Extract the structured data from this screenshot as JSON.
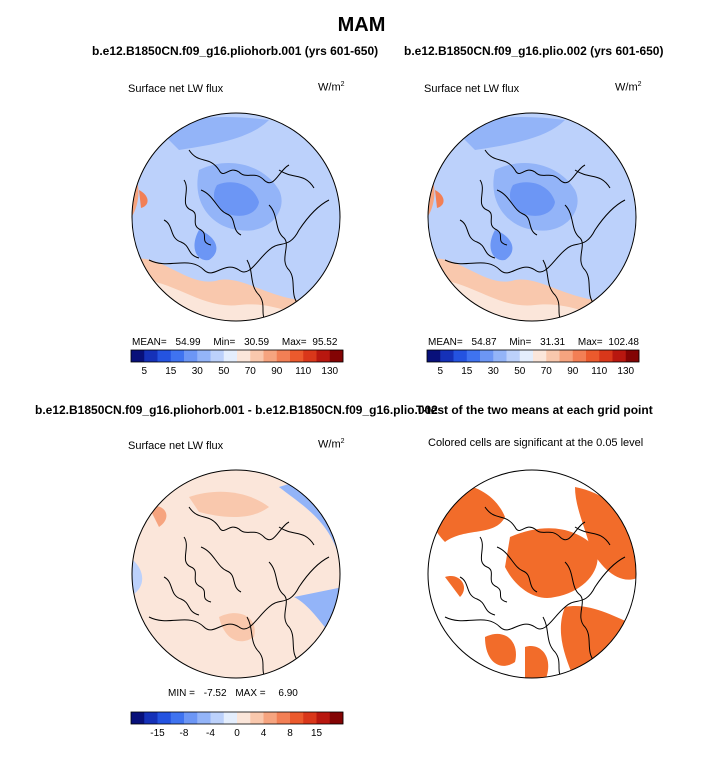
{
  "figure_title": "MAM",
  "colors": {
    "blue_scale": [
      "#08107a",
      "#1531b8",
      "#2453e0",
      "#3f73f0",
      "#6c96f5",
      "#93b4f8",
      "#bcd1fb",
      "#e4eefd"
    ],
    "red_scale": [
      "#fbe6da",
      "#f9c8ad",
      "#f6a47f",
      "#f27f55",
      "#eb5a2d",
      "#d9371a",
      "#b8170f",
      "#830404"
    ],
    "significant": "#f26c2a",
    "land_line": "#000000"
  },
  "panels": [
    {
      "title": "b.e12.B1850CN.f09_g16.pliohorb.001 (yrs 601-650)",
      "left_label": "Surface net LW flux",
      "units": "W/m",
      "units_sup": "2",
      "stats": {
        "mean_label": "MEAN=",
        "mean": "54.99",
        "min_label": "Min=",
        "min": "30.59",
        "max_label": "Max=",
        "max": "95.52"
      },
      "colorbar_ticks": [
        "5",
        "15",
        "30",
        "50",
        "70",
        "90",
        "110",
        "130"
      ]
    },
    {
      "title": "b.e12.B1850CN.f09_g16.plio.002 (yrs 601-650)",
      "left_label": "Surface net LW flux",
      "units": "W/m",
      "units_sup": "2",
      "stats": {
        "mean_label": "MEAN=",
        "mean": "54.87",
        "min_label": "Min=",
        "min": "31.31",
        "max_label": "Max=",
        "max": "102.48"
      },
      "colorbar_ticks": [
        "5",
        "15",
        "30",
        "50",
        "70",
        "90",
        "110",
        "130"
      ]
    },
    {
      "title": "b.e12.B1850CN.f09_g16.pliohorb.001 - b.e12.B1850CN.f09_g16.plio.002",
      "left_label": "Surface net LW flux",
      "units": "W/m",
      "units_sup": "2",
      "stats": {
        "min_label": "MIN =",
        "min": "-7.52",
        "max_label": "MAX =",
        "max": "6.90"
      },
      "colorbar_ticks": [
        "-15",
        "-8",
        "-4",
        "0",
        "4",
        "8",
        "15"
      ]
    },
    {
      "title": "T-test of the two means at each grid point",
      "left_label": "Colored cells are significant at the 0.05 level"
    }
  ],
  "chart_data": [
    {
      "type": "heatmap",
      "projection": "north polar stereographic",
      "title": "b.e12.B1850CN.f09_g16.pliohorb.001 (yrs 601-650)",
      "variable": "Surface net LW flux",
      "units": "W/m2",
      "mean": 54.99,
      "min": 30.59,
      "max": 95.52,
      "colorbar_levels": [
        5,
        10,
        15,
        20,
        30,
        40,
        50,
        60,
        70,
        80,
        90,
        100,
        110,
        120,
        130
      ]
    },
    {
      "type": "heatmap",
      "projection": "north polar stereographic",
      "title": "b.e12.B1850CN.f09_g16.plio.002 (yrs 601-650)",
      "variable": "Surface net LW flux",
      "units": "W/m2",
      "mean": 54.87,
      "min": 31.31,
      "max": 102.48,
      "colorbar_levels": [
        5,
        10,
        15,
        20,
        30,
        40,
        50,
        60,
        70,
        80,
        90,
        100,
        110,
        120,
        130
      ]
    },
    {
      "type": "heatmap",
      "projection": "north polar stereographic",
      "title": "b.e12.B1850CN.f09_g16.pliohorb.001 - b.e12.B1850CN.f09_g16.plio.002",
      "variable": "Surface net LW flux",
      "units": "W/m2",
      "min": -7.52,
      "max": 6.9,
      "colorbar_levels": [
        -15,
        -12,
        -8,
        -6,
        -4,
        -2,
        0,
        2,
        4,
        6,
        8,
        12,
        15
      ]
    },
    {
      "type": "heatmap",
      "projection": "north polar stereographic",
      "title": "T-test of the two means at each grid point",
      "note": "Colored cells are significant at the 0.05 level",
      "significance_level": 0.05
    }
  ]
}
